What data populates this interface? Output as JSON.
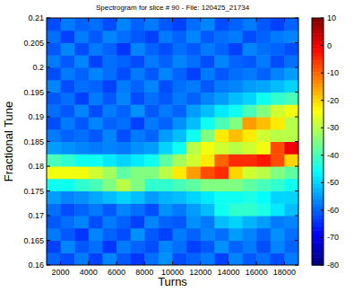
{
  "chart_data": {
    "type": "heatmap",
    "title": "Spectrogram for slice # 90 - File: 120425_21734",
    "x_label": "Turns",
    "y_label": "Fractional Tune",
    "x": [
      1500,
      2500,
      3500,
      4500,
      5500,
      6500,
      7500,
      8500,
      9500,
      10500,
      11500,
      12500,
      13500,
      14500,
      15500,
      16500,
      17500,
      18500
    ],
    "y": [
      0.16125,
      0.16375,
      0.16625,
      0.16875,
      0.17125,
      0.17375,
      0.17625,
      0.17875,
      0.18125,
      0.18375,
      0.18625,
      0.18875,
      0.19125,
      0.19375,
      0.19625,
      0.19875,
      0.20125,
      0.20375,
      0.20625,
      0.20875
    ],
    "cells": [
      [
        -60,
        -62,
        -58,
        -63,
        -57,
        -61,
        -64,
        -59,
        -56,
        -62,
        -60,
        -58,
        -63,
        -57,
        -61,
        -59,
        -62,
        -58
      ],
      [
        -63,
        -57,
        -61,
        -59,
        -64,
        -58,
        -60,
        -62,
        -57,
        -59,
        -63,
        -61,
        -56,
        -60,
        -58,
        -62,
        -57,
        -60
      ],
      [
        -58,
        -61,
        -64,
        -57,
        -60,
        -62,
        -56,
        -61,
        -63,
        -58,
        -60,
        -57,
        -59,
        -55,
        -57,
        -60,
        -56,
        -59
      ],
      [
        -61,
        -59,
        -57,
        -62,
        -58,
        -60,
        -63,
        -57,
        -60,
        -61,
        -56,
        -58,
        -52,
        -50,
        -53,
        -55,
        -58,
        -57
      ],
      [
        -59,
        -62,
        -60,
        -58,
        -61,
        -57,
        -59,
        -62,
        -56,
        -58,
        -55,
        -52,
        -45,
        -42,
        -42,
        -44,
        -48,
        -52
      ],
      [
        -55,
        -57,
        -56,
        -54,
        -52,
        -50,
        -52,
        -55,
        -53,
        -52,
        -50,
        -48,
        -45,
        -45,
        -44,
        -46,
        -50,
        -50
      ],
      [
        -45,
        -45,
        -42,
        -40,
        -35,
        -30,
        -35,
        -42,
        -42,
        -40,
        -38,
        -35,
        -35,
        -35,
        -38,
        -40,
        -42,
        -45
      ],
      [
        -25,
        -25,
        -25,
        -28,
        -32,
        -38,
        -35,
        -35,
        -30,
        -22,
        -15,
        -8,
        -5,
        -20,
        -28,
        -30,
        -35,
        -38
      ],
      [
        -40,
        -42,
        -45,
        -45,
        -48,
        -50,
        -48,
        -45,
        -38,
        -32,
        -28,
        -22,
        -10,
        -5,
        -5,
        -3,
        -8,
        -20
      ],
      [
        -55,
        -56,
        -57,
        -58,
        -57,
        -58,
        -56,
        -55,
        -50,
        -45,
        -30,
        -25,
        -28,
        -30,
        -28,
        -25,
        -8,
        0
      ],
      [
        -58,
        -60,
        -59,
        -61,
        -57,
        -62,
        -58,
        -60,
        -55,
        -52,
        -45,
        -35,
        -22,
        -18,
        -22,
        -28,
        -30,
        -30
      ],
      [
        -62,
        -58,
        -61,
        -57,
        -60,
        -59,
        -63,
        -58,
        -60,
        -56,
        -52,
        -45,
        -40,
        -35,
        -15,
        -18,
        -22,
        -30
      ],
      [
        -59,
        -61,
        -57,
        -62,
        -58,
        -60,
        -56,
        -61,
        -58,
        -60,
        -55,
        -52,
        -48,
        -45,
        -40,
        -35,
        -28,
        -25
      ],
      [
        -61,
        -59,
        -63,
        -58,
        -61,
        -57,
        -62,
        -59,
        -61,
        -58,
        -60,
        -57,
        -55,
        -52,
        -50,
        -45,
        -42,
        -40
      ],
      [
        -57,
        -62,
        -59,
        -60,
        -63,
        -58,
        -60,
        -57,
        -62,
        -59,
        -58,
        -61,
        -58,
        -57,
        -55,
        -54,
        -52,
        -50
      ],
      [
        -62,
        -58,
        -60,
        -57,
        -59,
        -62,
        -58,
        -61,
        -57,
        -60,
        -63,
        -58,
        -61,
        -59,
        -58,
        -60,
        -57,
        -55
      ],
      [
        -58,
        -61,
        -57,
        -63,
        -59,
        -60,
        -62,
        -58,
        -60,
        -57,
        -59,
        -62,
        -57,
        -60,
        -61,
        -58,
        -62,
        -59
      ],
      [
        -61,
        -57,
        -62,
        -58,
        -60,
        -64,
        -57,
        -60,
        -62,
        -59,
        -61,
        -58,
        -60,
        -63,
        -57,
        -59,
        -60,
        -62
      ],
      [
        -59,
        -63,
        -58,
        -61,
        -57,
        -59,
        -61,
        -63,
        -58,
        -60,
        -57,
        -61,
        -59,
        -58,
        -62,
        -60,
        -58,
        -57
      ],
      [
        -62,
        -58,
        -60,
        -59,
        -62,
        -57,
        -60,
        -58,
        -61,
        -63,
        -59,
        -57,
        -62,
        -60,
        -58,
        -61,
        -63,
        -60
      ]
    ],
    "xlim": [
      1000,
      19000
    ],
    "ylim": [
      0.16,
      0.21
    ],
    "xticks": [
      2000,
      4000,
      6000,
      8000,
      10000,
      12000,
      14000,
      16000,
      18000
    ],
    "yticks": [
      0.16,
      0.165,
      0.17,
      0.175,
      0.18,
      0.185,
      0.19,
      0.195,
      0.2,
      0.205,
      0.21
    ],
    "colorbar": {
      "range": [
        -80,
        10
      ],
      "ticks": [
        -80,
        -70,
        -60,
        -50,
        -40,
        -30,
        -20,
        -10,
        0,
        10
      ]
    }
  }
}
